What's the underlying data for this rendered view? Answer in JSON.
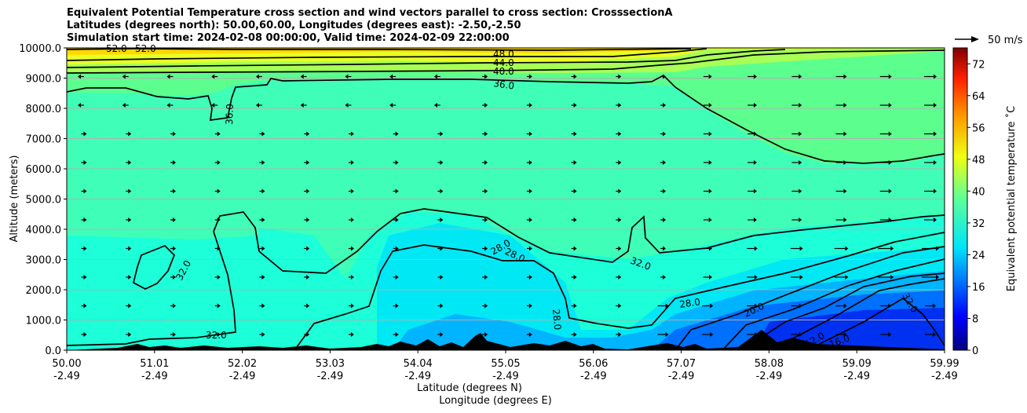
{
  "title_lines": [
    "Equivalent Potential Temperature cross section and wind vectors parallel to cross section: CrosssectionA",
    "Latitudes (degrees north): 50.00,60.00, Longitudes (degrees east): -2.50,-2.50",
    "Simulation start time: 2024-02-08 00:00:00, Valid time: 2024-02-09 22:00:00"
  ],
  "chart_data": {
    "type": "heatmap",
    "title": "Equivalent Potential Temperature cross section and wind vectors parallel to cross section: CrosssectionA",
    "xlabel": "Latitude (degrees N)",
    "xlabel2": "Longitude (degrees E)",
    "ylabel": "Altitude (meters)",
    "ylim": [
      0,
      10000
    ],
    "xlim": [
      50.0,
      59.99
    ],
    "x_ticks": [
      {
        "lat": "50.00",
        "lon": "-2.49"
      },
      {
        "lat": "51.01",
        "lon": "-2.49"
      },
      {
        "lat": "52.02",
        "lon": "-2.49"
      },
      {
        "lat": "53.03",
        "lon": "-2.49"
      },
      {
        "lat": "54.04",
        "lon": "-2.49"
      },
      {
        "lat": "55.05",
        "lon": "-2.49"
      },
      {
        "lat": "56.06",
        "lon": "-2.49"
      },
      {
        "lat": "57.07",
        "lon": "-2.49"
      },
      {
        "lat": "58.08",
        "lon": "-2.49"
      },
      {
        "lat": "59.09",
        "lon": "-2.49"
      },
      {
        "lat": "59.99",
        "lon": "-2.49"
      }
    ],
    "y_ticks": [
      "0.0",
      "1000.0",
      "2000.0",
      "3000.0",
      "4000.0",
      "5000.0",
      "6000.0",
      "7000.0",
      "8000.0",
      "9000.0",
      "10000.0"
    ],
    "grid": "horizontal",
    "colorbar": {
      "label": "Equivalent potential temperature $^\\circ$C",
      "label_text": "Equivalent potential temperature ˚C",
      "ticks": [
        "0",
        "8",
        "16",
        "24",
        "32",
        "40",
        "48",
        "56",
        "64",
        "72"
      ],
      "range": [
        0,
        76
      ],
      "colormap": "jet"
    },
    "wind_reference": "50 m/s",
    "contour_labels": [
      "52.0",
      "52.0",
      "48.0",
      "44.0",
      "40.0",
      "36.0",
      "36.0",
      "32.0",
      "32.0",
      "28.0",
      "28.0",
      "32.0",
      "28.0",
      "28.0",
      "20.0",
      "32.0",
      "12.0",
      "16.0"
    ]
  }
}
